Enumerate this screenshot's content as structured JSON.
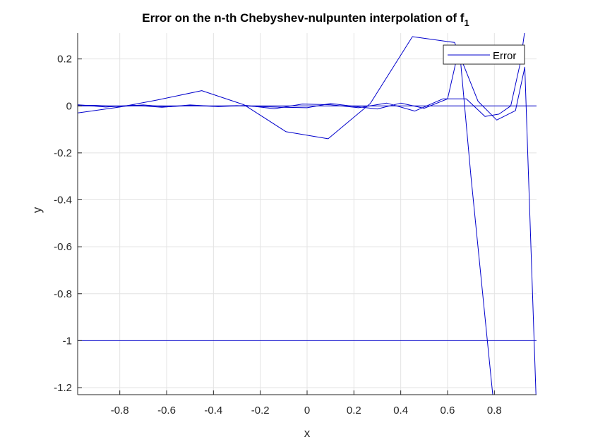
{
  "chart_data": {
    "type": "line",
    "title": "Error on the n-th Chebyshev-nulpunten interpolation of f",
    "title_subscript": "1",
    "xlabel": "x",
    "ylabel": "y",
    "xlim": [
      -0.98,
      0.98
    ],
    "ylim": [
      -1.23,
      0.31
    ],
    "xticks": [
      -0.8,
      -0.6,
      -0.4,
      -0.2,
      0,
      0.2,
      0.4,
      0.6,
      0.8
    ],
    "xtick_labels": [
      "-0.8",
      "-0.6",
      "-0.4",
      "-0.2",
      "0",
      "0.2",
      "0.4",
      "0.6",
      "0.8"
    ],
    "yticks": [
      0.2,
      0,
      -0.2,
      -0.4,
      -0.6,
      -0.8,
      -1,
      -1.2
    ],
    "ytick_labels": [
      "0.2",
      "0",
      "-0.2",
      "-0.4",
      "-0.6",
      "-0.8",
      "-1",
      "-1.2"
    ],
    "grid": true,
    "legend": {
      "position": "top-right",
      "entries": [
        "Error"
      ]
    },
    "line_color": "#0000cc",
    "series": [
      {
        "x": [
          -0.98,
          -0.8,
          -0.64,
          -0.45,
          -0.27,
          -0.09,
          0.09,
          0.27,
          0.45,
          0.63,
          0.73,
          0.81,
          0.89,
          0.93,
          0.98
        ],
        "y": [
          -0.03,
          -0.005,
          0.025,
          0.065,
          0.005,
          -0.11,
          -0.14,
          0.01,
          0.295,
          0.27,
          0.02,
          -0.06,
          -0.02,
          0.165,
          -1.3
        ]
      },
      {
        "x": [
          -0.98,
          -0.86,
          -0.74,
          -0.62,
          -0.5,
          -0.38,
          -0.26,
          -0.14,
          -0.02,
          0.1,
          0.22,
          0.34,
          0.46,
          0.58,
          0.68,
          0.76,
          0.82,
          0.87,
          0.91,
          0.93
        ],
        "y": [
          0.005,
          -0.005,
          0.003,
          -0.006,
          0.004,
          -0.003,
          0.002,
          -0.012,
          0.008,
          0.005,
          -0.008,
          0.012,
          -0.022,
          0.03,
          0.03,
          -0.045,
          -0.035,
          0.0,
          0.18,
          0.32
        ]
      },
      {
        "x": [
          -0.98,
          -0.9,
          -0.8,
          -0.7,
          -0.6,
          -0.5,
          -0.4,
          -0.3,
          -0.2,
          -0.1,
          0.0,
          0.1,
          0.2,
          0.3,
          0.4,
          0.5,
          0.6,
          0.65,
          0.7,
          0.8
        ],
        "y": [
          0.003,
          0.002,
          -0.003,
          0.004,
          -0.004,
          0.002,
          -0.002,
          0.001,
          -0.003,
          -0.006,
          -0.008,
          0.01,
          -0.002,
          -0.013,
          0.012,
          -0.01,
          0.03,
          0.25,
          -0.3,
          -1.3
        ]
      },
      {
        "x": [
          -0.98,
          -0.6,
          -0.2,
          0.2,
          0.6,
          0.98
        ],
        "y": [
          0.0,
          0.0,
          0.0,
          0.0,
          0.0,
          0.0
        ]
      },
      {
        "x": [
          -0.98,
          -0.6,
          -0.2,
          0.2,
          0.6,
          0.98
        ],
        "y": [
          -1.0,
          -1.0,
          -1.0,
          -1.0,
          -1.0,
          -1.0
        ]
      }
    ]
  }
}
